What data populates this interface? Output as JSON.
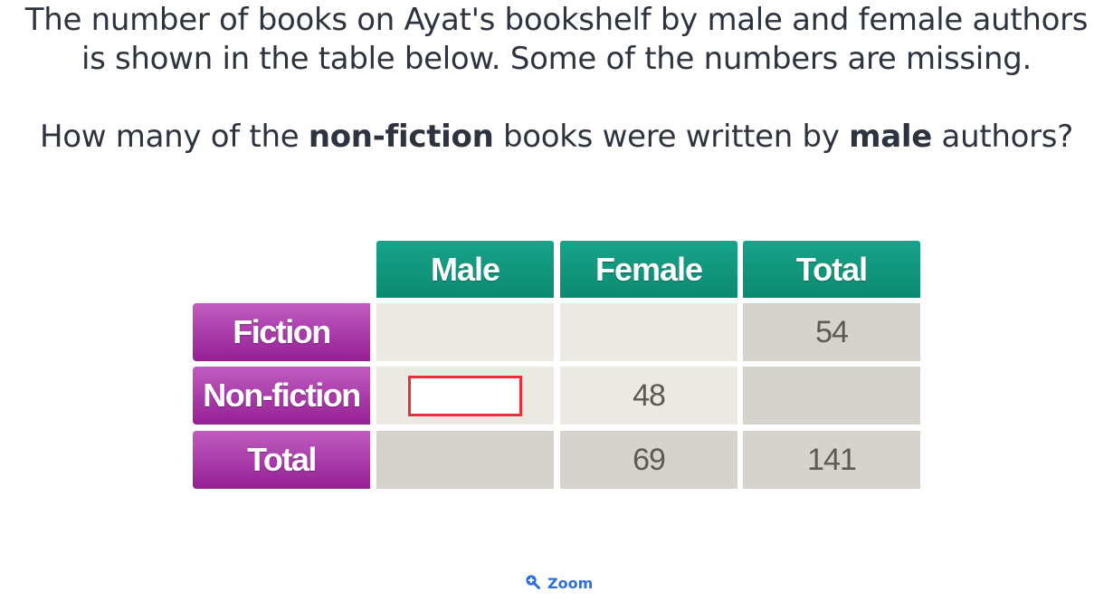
{
  "question": {
    "line1": "The number of books on Ayat's bookshelf by male and female authors",
    "line2": "is shown in the table below. Some of the numbers are missing.",
    "ask_prefix": "How many of the ",
    "ask_bold1": "non-fiction",
    "ask_middle": " books were written by ",
    "ask_bold2": "male",
    "ask_suffix": " authors?"
  },
  "table": {
    "columns": [
      "Male",
      "Female",
      "Total"
    ],
    "rows": [
      {
        "label": "Fiction",
        "cells": [
          "",
          "",
          "54"
        ]
      },
      {
        "label": "Non-fiction",
        "cells": [
          "",
          "48",
          ""
        ]
      },
      {
        "label": "Total",
        "cells": [
          "",
          "69",
          "141"
        ]
      }
    ],
    "answer": {
      "value": "",
      "placeholder": ""
    }
  },
  "zoom": {
    "label": "Zoom",
    "icon": "zoom-in-icon"
  },
  "colors": {
    "header": "#0f957c",
    "row_header": "#a33ca3",
    "cell_light": "#ece9e2",
    "cell_dark": "#d6d3cc",
    "answer_border": "#e8303a",
    "link": "#2f6fdb"
  }
}
